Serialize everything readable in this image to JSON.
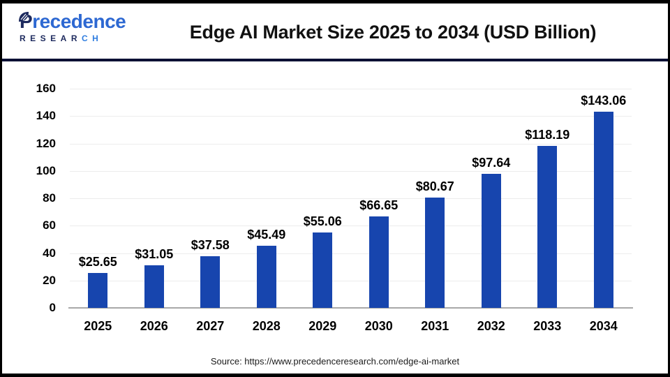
{
  "header": {
    "logo": {
      "brand_initial": "P",
      "brand_rest": "recedence",
      "subtitle_dark": "RESEAR",
      "subtitle_light": "CH"
    },
    "title": "Edge AI Market Size 2025 to 2034 (USD Billion)"
  },
  "chart_data": {
    "type": "bar",
    "title": "Edge AI Market Size 2025 to 2034 (USD Billion)",
    "categories": [
      "2025",
      "2026",
      "2027",
      "2028",
      "2029",
      "2030",
      "2031",
      "2032",
      "2033",
      "2034"
    ],
    "values": [
      25.65,
      31.05,
      37.58,
      45.49,
      55.06,
      66.65,
      80.67,
      97.64,
      118.19,
      143.06
    ],
    "value_labels": [
      "$25.65",
      "$31.05",
      "$37.58",
      "$45.49",
      "$55.06",
      "$66.65",
      "$80.67",
      "$97.64",
      "$118.19",
      "$143.06"
    ],
    "ylim": [
      0,
      160
    ],
    "ytick_step": 20,
    "grid": true,
    "legend": "none",
    "bar_color": "#1745ae",
    "xlabel": "",
    "ylabel": ""
  },
  "footer": {
    "source": "Source: https://www.precedenceresearch.com/edge-ai-market"
  },
  "colors": {
    "bar": "#1745ae",
    "divider": "#0a1034",
    "logo_navy": "#1d2a5e",
    "logo_blue": "#2d68d2",
    "gridline": "#ececec",
    "baseline": "#a8a8a8"
  }
}
